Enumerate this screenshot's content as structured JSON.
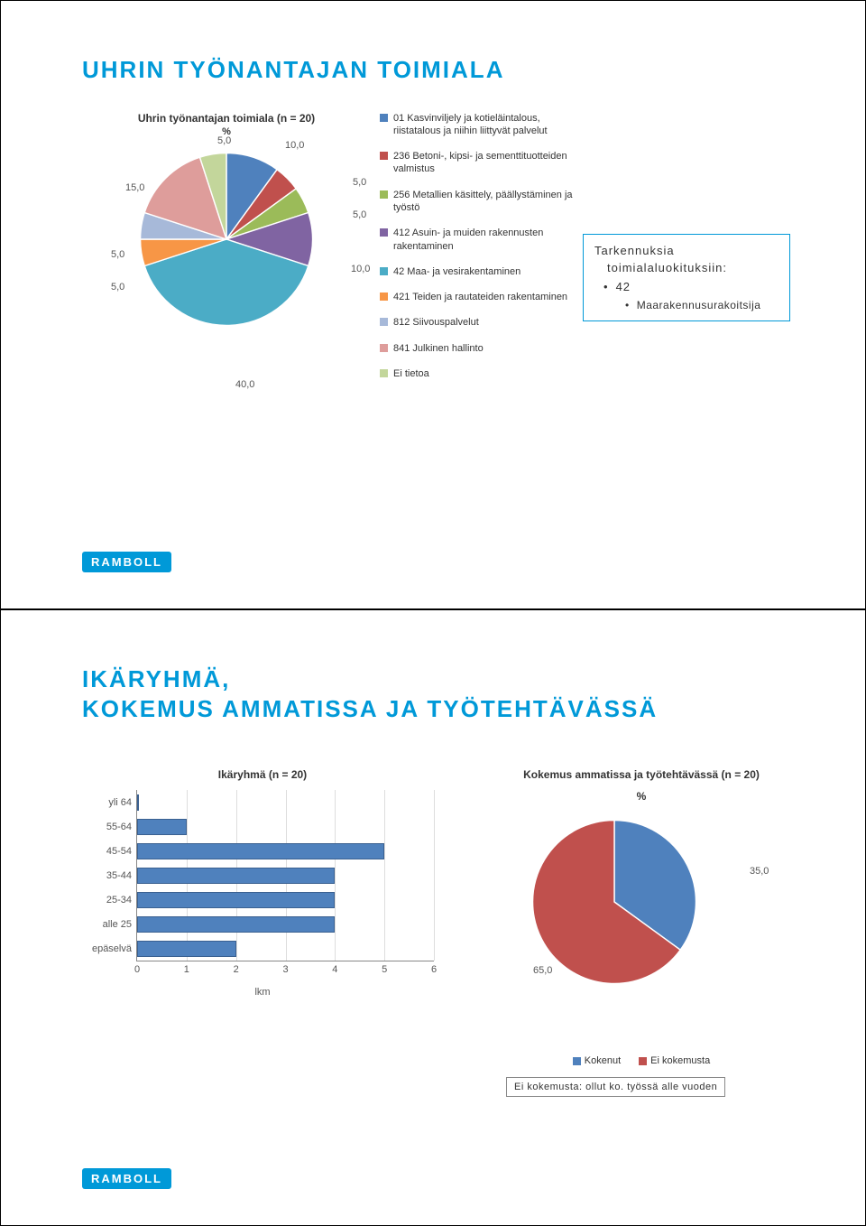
{
  "logo_text": "RAMBOLL",
  "slide1": {
    "title": "UHRIN TYÖNANTAJAN TOIMIALA",
    "pie": {
      "type": "pie",
      "title": "Uhrin työnantajan toimiala (n = 20)",
      "subtitle": "%",
      "background_color": "#ffffff",
      "label_fontsize": 11,
      "label_color": "#595959",
      "slices": [
        {
          "label": "01 Kasvinviljely ja kotieläintalous, riistatalous ja niihin liittyvät palvelut",
          "value": 10.0,
          "color": "#4f81bd",
          "display": "10,0"
        },
        {
          "label": "236 Betoni-, kipsi- ja sementtituotteiden valmistus",
          "value": 5.0,
          "color": "#c0504d",
          "display": "5,0"
        },
        {
          "label": "256 Metallien käsittely, päällystäminen ja työstö",
          "value": 5.0,
          "color": "#9bbb59",
          "display": "5,0"
        },
        {
          "label": "412 Asuin- ja muiden rakennusten rakentaminen",
          "value": 10.0,
          "color": "#8064a2",
          "display": "10,0"
        },
        {
          "label": "42 Maa- ja vesirakentaminen",
          "value": 40.0,
          "color": "#4bacc6",
          "display": "40,0"
        },
        {
          "label": "421 Teiden ja rautateiden rakentaminen",
          "value": 5.0,
          "color": "#f79646",
          "display": "5,0"
        },
        {
          "label": "812 Siivouspalvelut",
          "value": 5.0,
          "color": "#a7b9d9",
          "display": "5,0"
        },
        {
          "label": "841 Julkinen hallinto",
          "value": 15.0,
          "color": "#de9d9b",
          "display": "15,0"
        },
        {
          "label": "Ei tietoa",
          "value": 5.0,
          "color": "#c3d69b",
          "display": "5,0"
        }
      ]
    },
    "notebox": {
      "line1": "Tarkennuksia",
      "line2": "toimialaluokituksiin:",
      "bullet": "42",
      "subbullet": "Maarakennusurakoitsija"
    }
  },
  "slide2": {
    "title": "IKÄRYHMÄ,\nKOKEMUS AMMATISSA JA TYÖTEHTÄVÄSSÄ",
    "bar": {
      "type": "bar-horizontal",
      "title": "Ikäryhmä (n = 20)",
      "xlabel": "lkm",
      "xlim": [
        0,
        6
      ],
      "xtick_step": 1,
      "bar_color": "#4f81bd",
      "bar_border": "#3a6090",
      "grid_color": "#dddddd",
      "axis_color": "#888888",
      "label_fontsize": 11,
      "categories": [
        "yli 64",
        "55-64",
        "45-54",
        "35-44",
        "25-34",
        "alle 25",
        "epäselvä"
      ],
      "values": [
        0,
        1,
        5,
        4,
        4,
        4,
        2
      ]
    },
    "pie": {
      "type": "pie",
      "title": "Kokemus ammatissa ja työtehtävässä (n = 20)",
      "subtitle": "%",
      "label_fontsize": 11,
      "slices": [
        {
          "label": "Kokenut",
          "value": 35.0,
          "color": "#4f81bd",
          "display": "35,0"
        },
        {
          "label": "Ei kokemusta",
          "value": 65.0,
          "color": "#c0504d",
          "display": "65,0"
        }
      ]
    },
    "footnote": "Ei kokemusta: ollut ko. työssä alle vuoden"
  }
}
